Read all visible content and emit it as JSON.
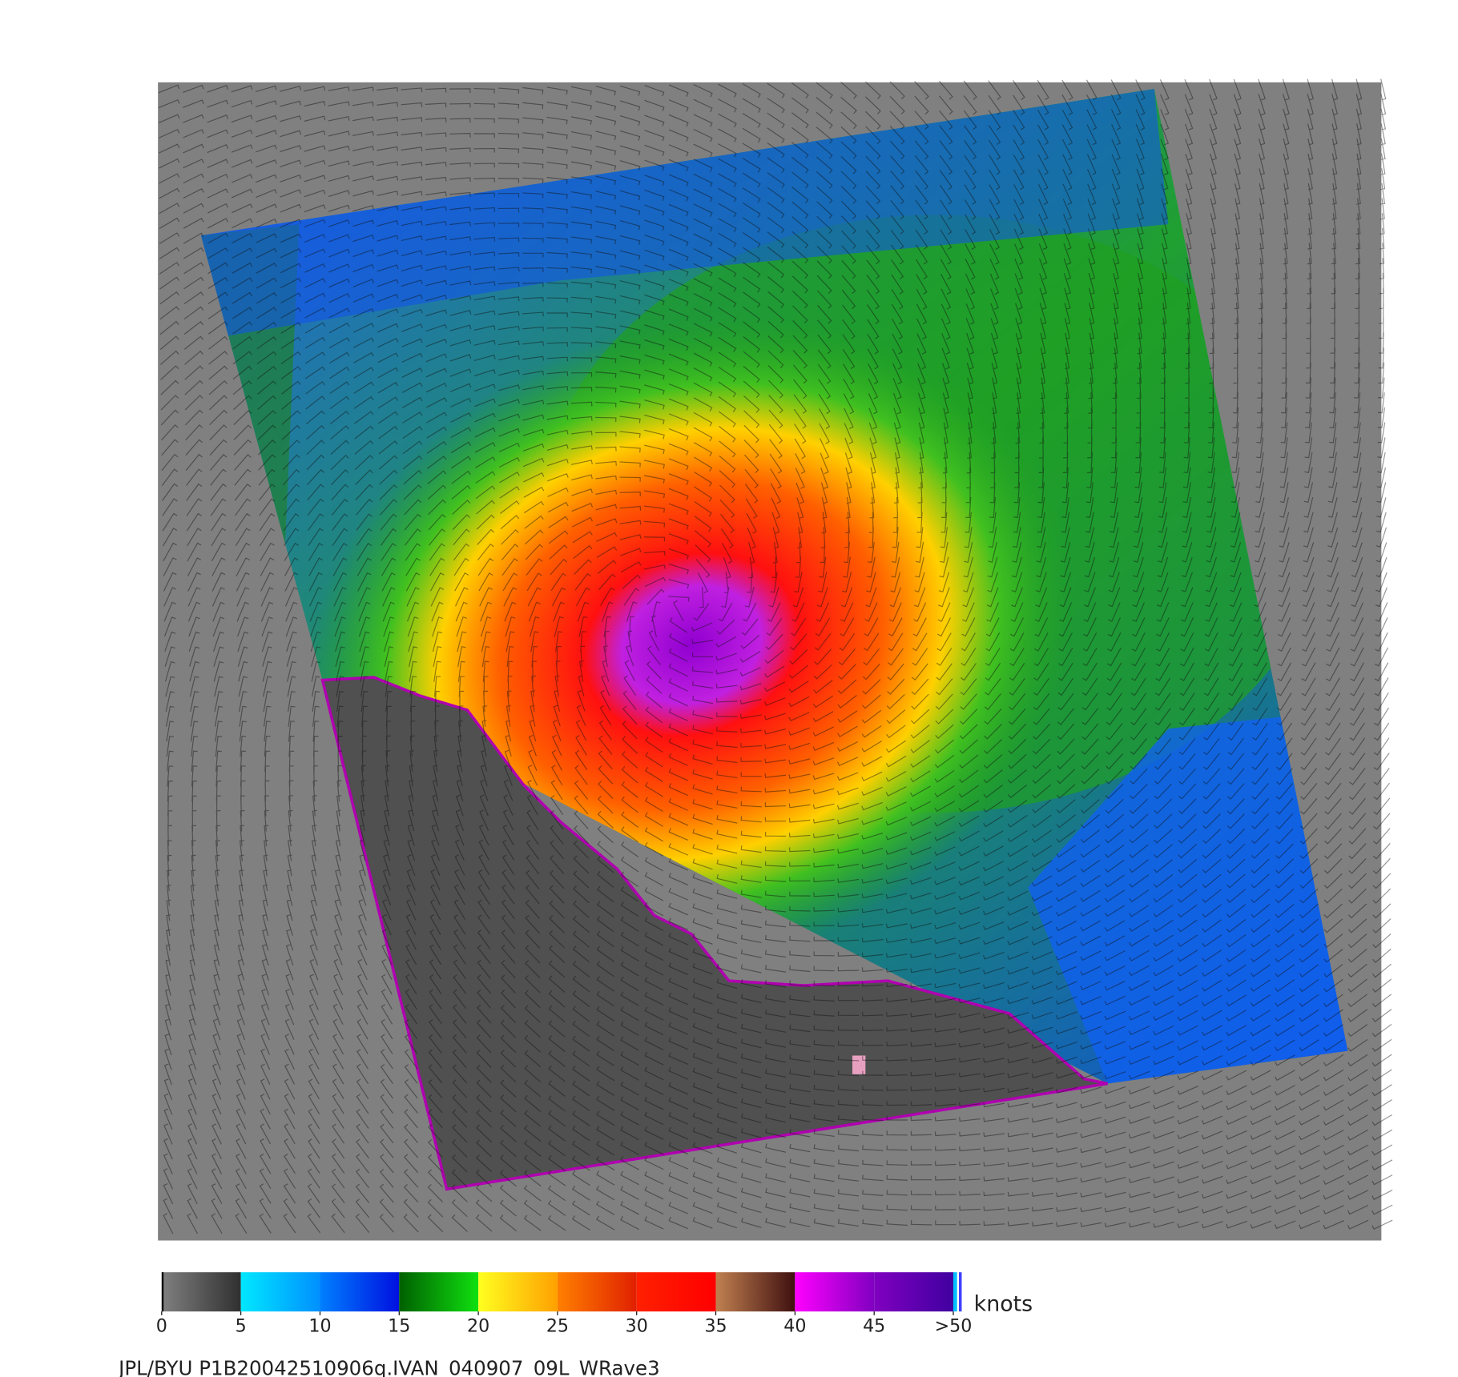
{
  "colorbar": {
    "lim": [
      0,
      50
    ],
    "ticks": [
      0,
      5,
      10,
      15,
      20,
      25,
      30,
      35,
      40,
      45,
      {
        "value": 50,
        "label": ">50"
      }
    ],
    "band_colors": [
      [
        "#808080",
        "#303030"
      ],
      [
        "#00e8ff",
        "#0090ff"
      ],
      [
        "#0080ff",
        "#0010e0"
      ],
      [
        "#006000",
        "#10e010"
      ],
      [
        "#ffff20",
        "#ffa000"
      ],
      [
        "#ff8000",
        "#e02000"
      ],
      [
        "#ff2000",
        "#ff0000"
      ],
      [
        "#c08050",
        "#401010"
      ],
      [
        "#ff00ff",
        "#8000c0"
      ],
      [
        "#8000c0",
        "#4000a0"
      ]
    ],
    "unit": "knots"
  },
  "footer": "JPL/BYU  P1B20042510906q.IVAN_040907_09L_WRave3"
}
